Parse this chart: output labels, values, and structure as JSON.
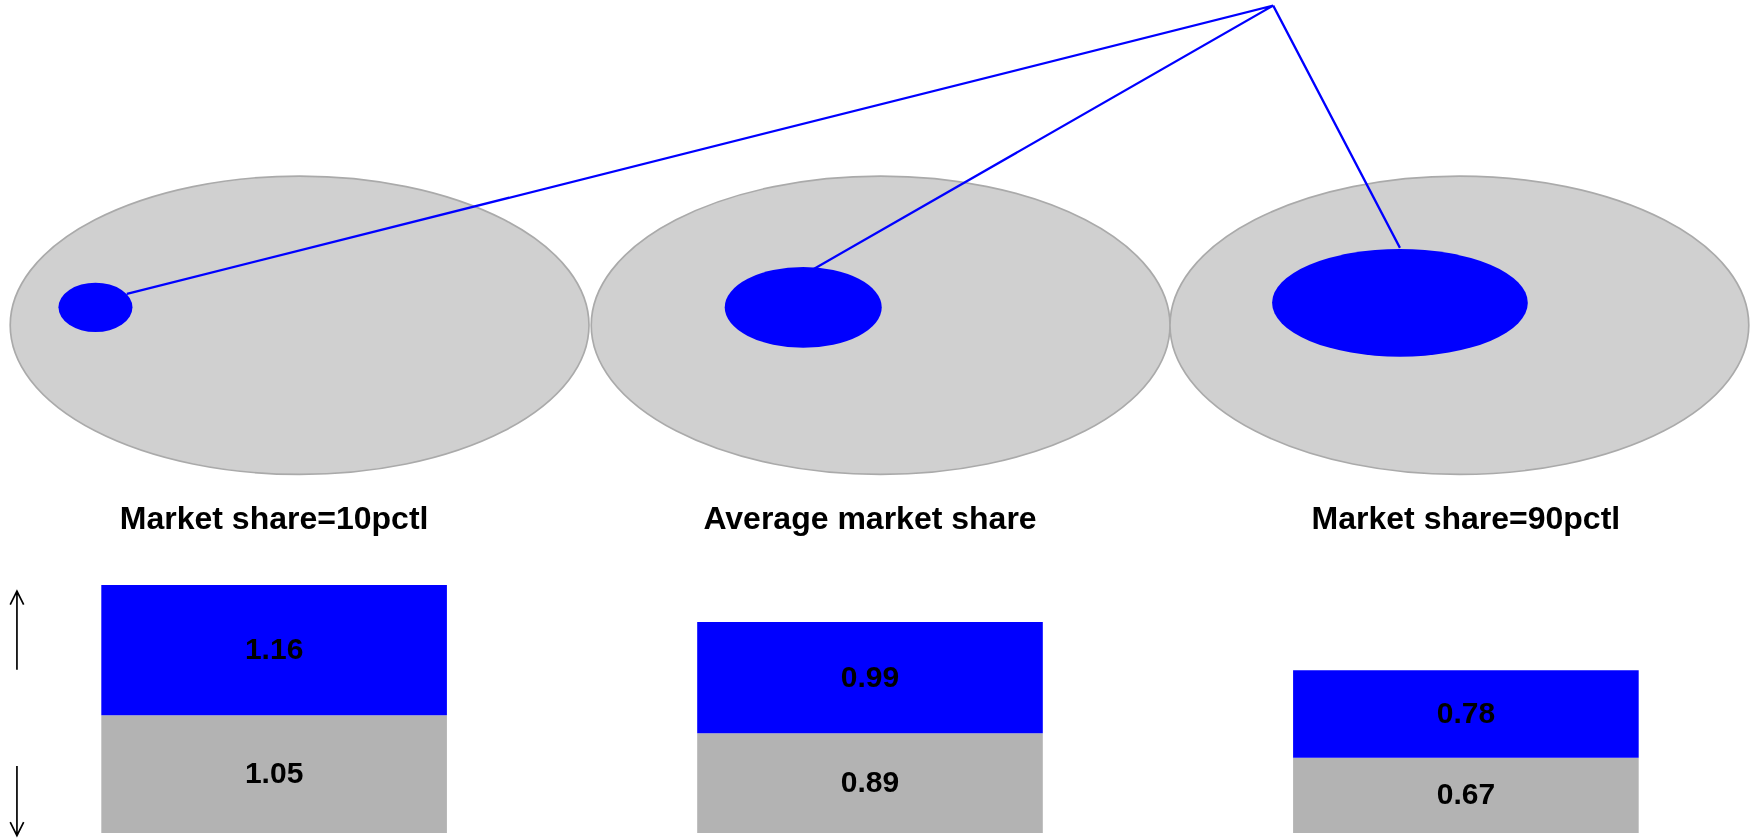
{
  "chart_data": {
    "type": "bar",
    "stacked": true,
    "categories": [
      "Market share=10pctl",
      "Average market share",
      "Market share=90pctl"
    ],
    "series": [
      {
        "color": "#b3b3b3",
        "values": [
          1.05,
          0.89,
          0.67
        ],
        "value_labels": [
          "1.05",
          "0.89",
          "0.67"
        ]
      },
      {
        "color": "#0000ff",
        "values": [
          1.16,
          0.99,
          0.78
        ],
        "value_labels": [
          "1.16",
          "0.99",
          "0.78"
        ]
      }
    ]
  }
}
